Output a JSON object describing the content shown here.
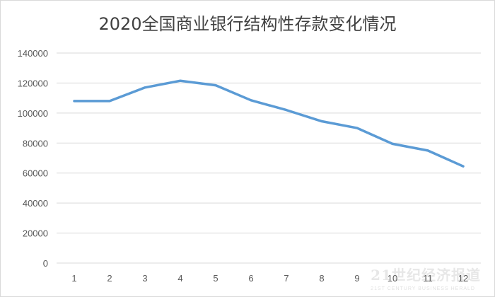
{
  "chart_data": {
    "type": "line",
    "title": "2020全国商业银行结构性存款变化情况",
    "xlabel": "",
    "ylabel": "",
    "categories": [
      "1",
      "2",
      "3",
      "4",
      "5",
      "6",
      "7",
      "8",
      "9",
      "10",
      "11",
      "12"
    ],
    "series": [
      {
        "values": [
          108000,
          108000,
          117000,
          121500,
          118500,
          108500,
          102000,
          94500,
          90000,
          79500,
          75000,
          64500
        ],
        "color": "#5b9bd5"
      }
    ],
    "ylim": [
      0,
      140000
    ],
    "yticks": [
      "0",
      "20000",
      "40000",
      "60000",
      "80000",
      "100000",
      "120000",
      "140000"
    ],
    "grid": true,
    "legend": "none"
  },
  "watermark": {
    "main": "21世纪经济报道",
    "sub": "21ST CENTURY BUSINESS HERALD"
  }
}
